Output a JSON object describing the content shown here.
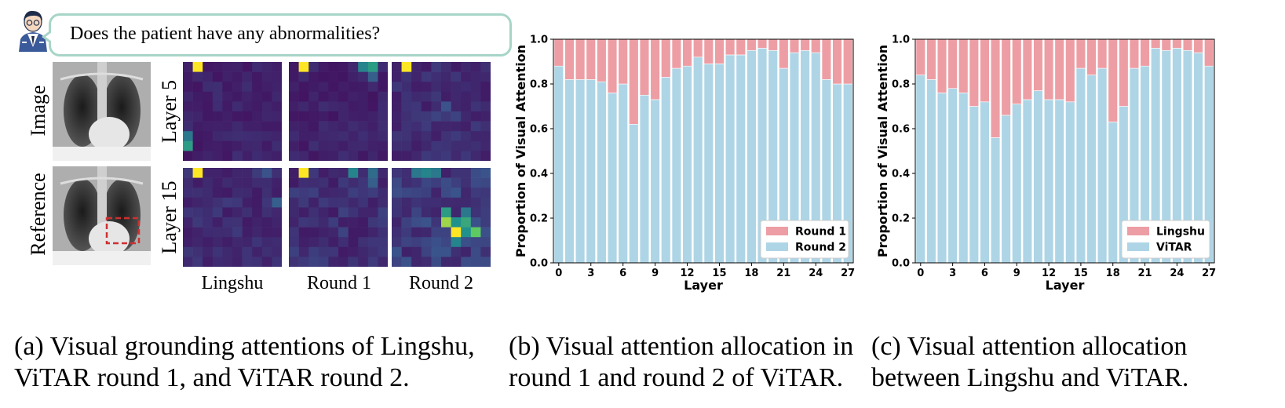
{
  "panel_a": {
    "question": "Does the patient have any abnormalities?",
    "row_labels_left": [
      "Image",
      "Reference"
    ],
    "row_labels_layer": [
      "Layer 5",
      "Layer 15"
    ],
    "column_labels": [
      "Lingshu",
      "Round 1",
      "Round 2"
    ],
    "caption": "(a) Visual grounding attentions of Lingshu, ViTAR round 1, and ViTAR round 2."
  },
  "panel_b": {
    "caption": "(b) Visual attention allocation in round 1 and round 2 of ViTAR."
  },
  "panel_c": {
    "caption": "(c) Visual attention allocation between Lingshu and ViTAR."
  },
  "colors": {
    "top_series": "#ed9ea4",
    "bottom_series": "#aed5e6",
    "bubble_border": "#a7d5c7",
    "box_red": "#d03030"
  },
  "chart_data": [
    {
      "type": "bar",
      "stacked": true,
      "xlabel": "Layer",
      "ylabel": "Proportion of Visual Attention",
      "ylim": [
        0,
        1.0
      ],
      "yticks": [
        "0.0",
        "0.2",
        "0.4",
        "0.6",
        "0.8",
        "1.0"
      ],
      "xticks": [
        "0",
        "3",
        "6",
        "9",
        "12",
        "15",
        "18",
        "21",
        "24",
        "27"
      ],
      "x": [
        0,
        1,
        2,
        3,
        4,
        5,
        6,
        7,
        8,
        9,
        10,
        11,
        12,
        13,
        14,
        15,
        16,
        17,
        18,
        19,
        20,
        21,
        22,
        23,
        24,
        25,
        26,
        27
      ],
      "legend_position": "lower-right",
      "series": [
        {
          "name": "Round 2",
          "color": "#aed5e6",
          "values": [
            0.88,
            0.82,
            0.82,
            0.82,
            0.81,
            0.76,
            0.8,
            0.62,
            0.75,
            0.73,
            0.83,
            0.87,
            0.88,
            0.92,
            0.89,
            0.89,
            0.93,
            0.93,
            0.95,
            0.96,
            0.95,
            0.87,
            0.94,
            0.95,
            0.94,
            0.82,
            0.8,
            0.8
          ]
        },
        {
          "name": "Round 1",
          "color": "#ed9ea4",
          "values": [
            0.12,
            0.18,
            0.18,
            0.18,
            0.19,
            0.24,
            0.2,
            0.38,
            0.25,
            0.27,
            0.17,
            0.13,
            0.12,
            0.08,
            0.11,
            0.11,
            0.07,
            0.07,
            0.05,
            0.04,
            0.05,
            0.13,
            0.06,
            0.05,
            0.06,
            0.18,
            0.2,
            0.2
          ]
        }
      ]
    },
    {
      "type": "bar",
      "stacked": true,
      "xlabel": "Layer",
      "ylabel": "Proportion of Visual Attention",
      "ylim": [
        0,
        1.0
      ],
      "yticks": [
        "0.0",
        "0.2",
        "0.4",
        "0.6",
        "0.8",
        "1.0"
      ],
      "xticks": [
        "0",
        "3",
        "6",
        "9",
        "12",
        "15",
        "18",
        "21",
        "24",
        "27"
      ],
      "x": [
        0,
        1,
        2,
        3,
        4,
        5,
        6,
        7,
        8,
        9,
        10,
        11,
        12,
        13,
        14,
        15,
        16,
        17,
        18,
        19,
        20,
        21,
        22,
        23,
        24,
        25,
        26,
        27
      ],
      "legend_position": "lower-right",
      "series": [
        {
          "name": "ViTAR",
          "color": "#aed5e6",
          "values": [
            0.84,
            0.82,
            0.76,
            0.78,
            0.76,
            0.7,
            0.72,
            0.56,
            0.66,
            0.71,
            0.73,
            0.77,
            0.73,
            0.73,
            0.72,
            0.87,
            0.84,
            0.87,
            0.63,
            0.7,
            0.87,
            0.88,
            0.96,
            0.95,
            0.96,
            0.95,
            0.94,
            0.88
          ]
        },
        {
          "name": "Lingshu",
          "color": "#ed9ea4",
          "values": [
            0.16,
            0.18,
            0.24,
            0.22,
            0.24,
            0.3,
            0.28,
            0.44,
            0.34,
            0.29,
            0.27,
            0.23,
            0.27,
            0.27,
            0.28,
            0.13,
            0.16,
            0.13,
            0.37,
            0.3,
            0.13,
            0.12,
            0.04,
            0.05,
            0.04,
            0.05,
            0.06,
            0.12
          ]
        }
      ]
    }
  ]
}
